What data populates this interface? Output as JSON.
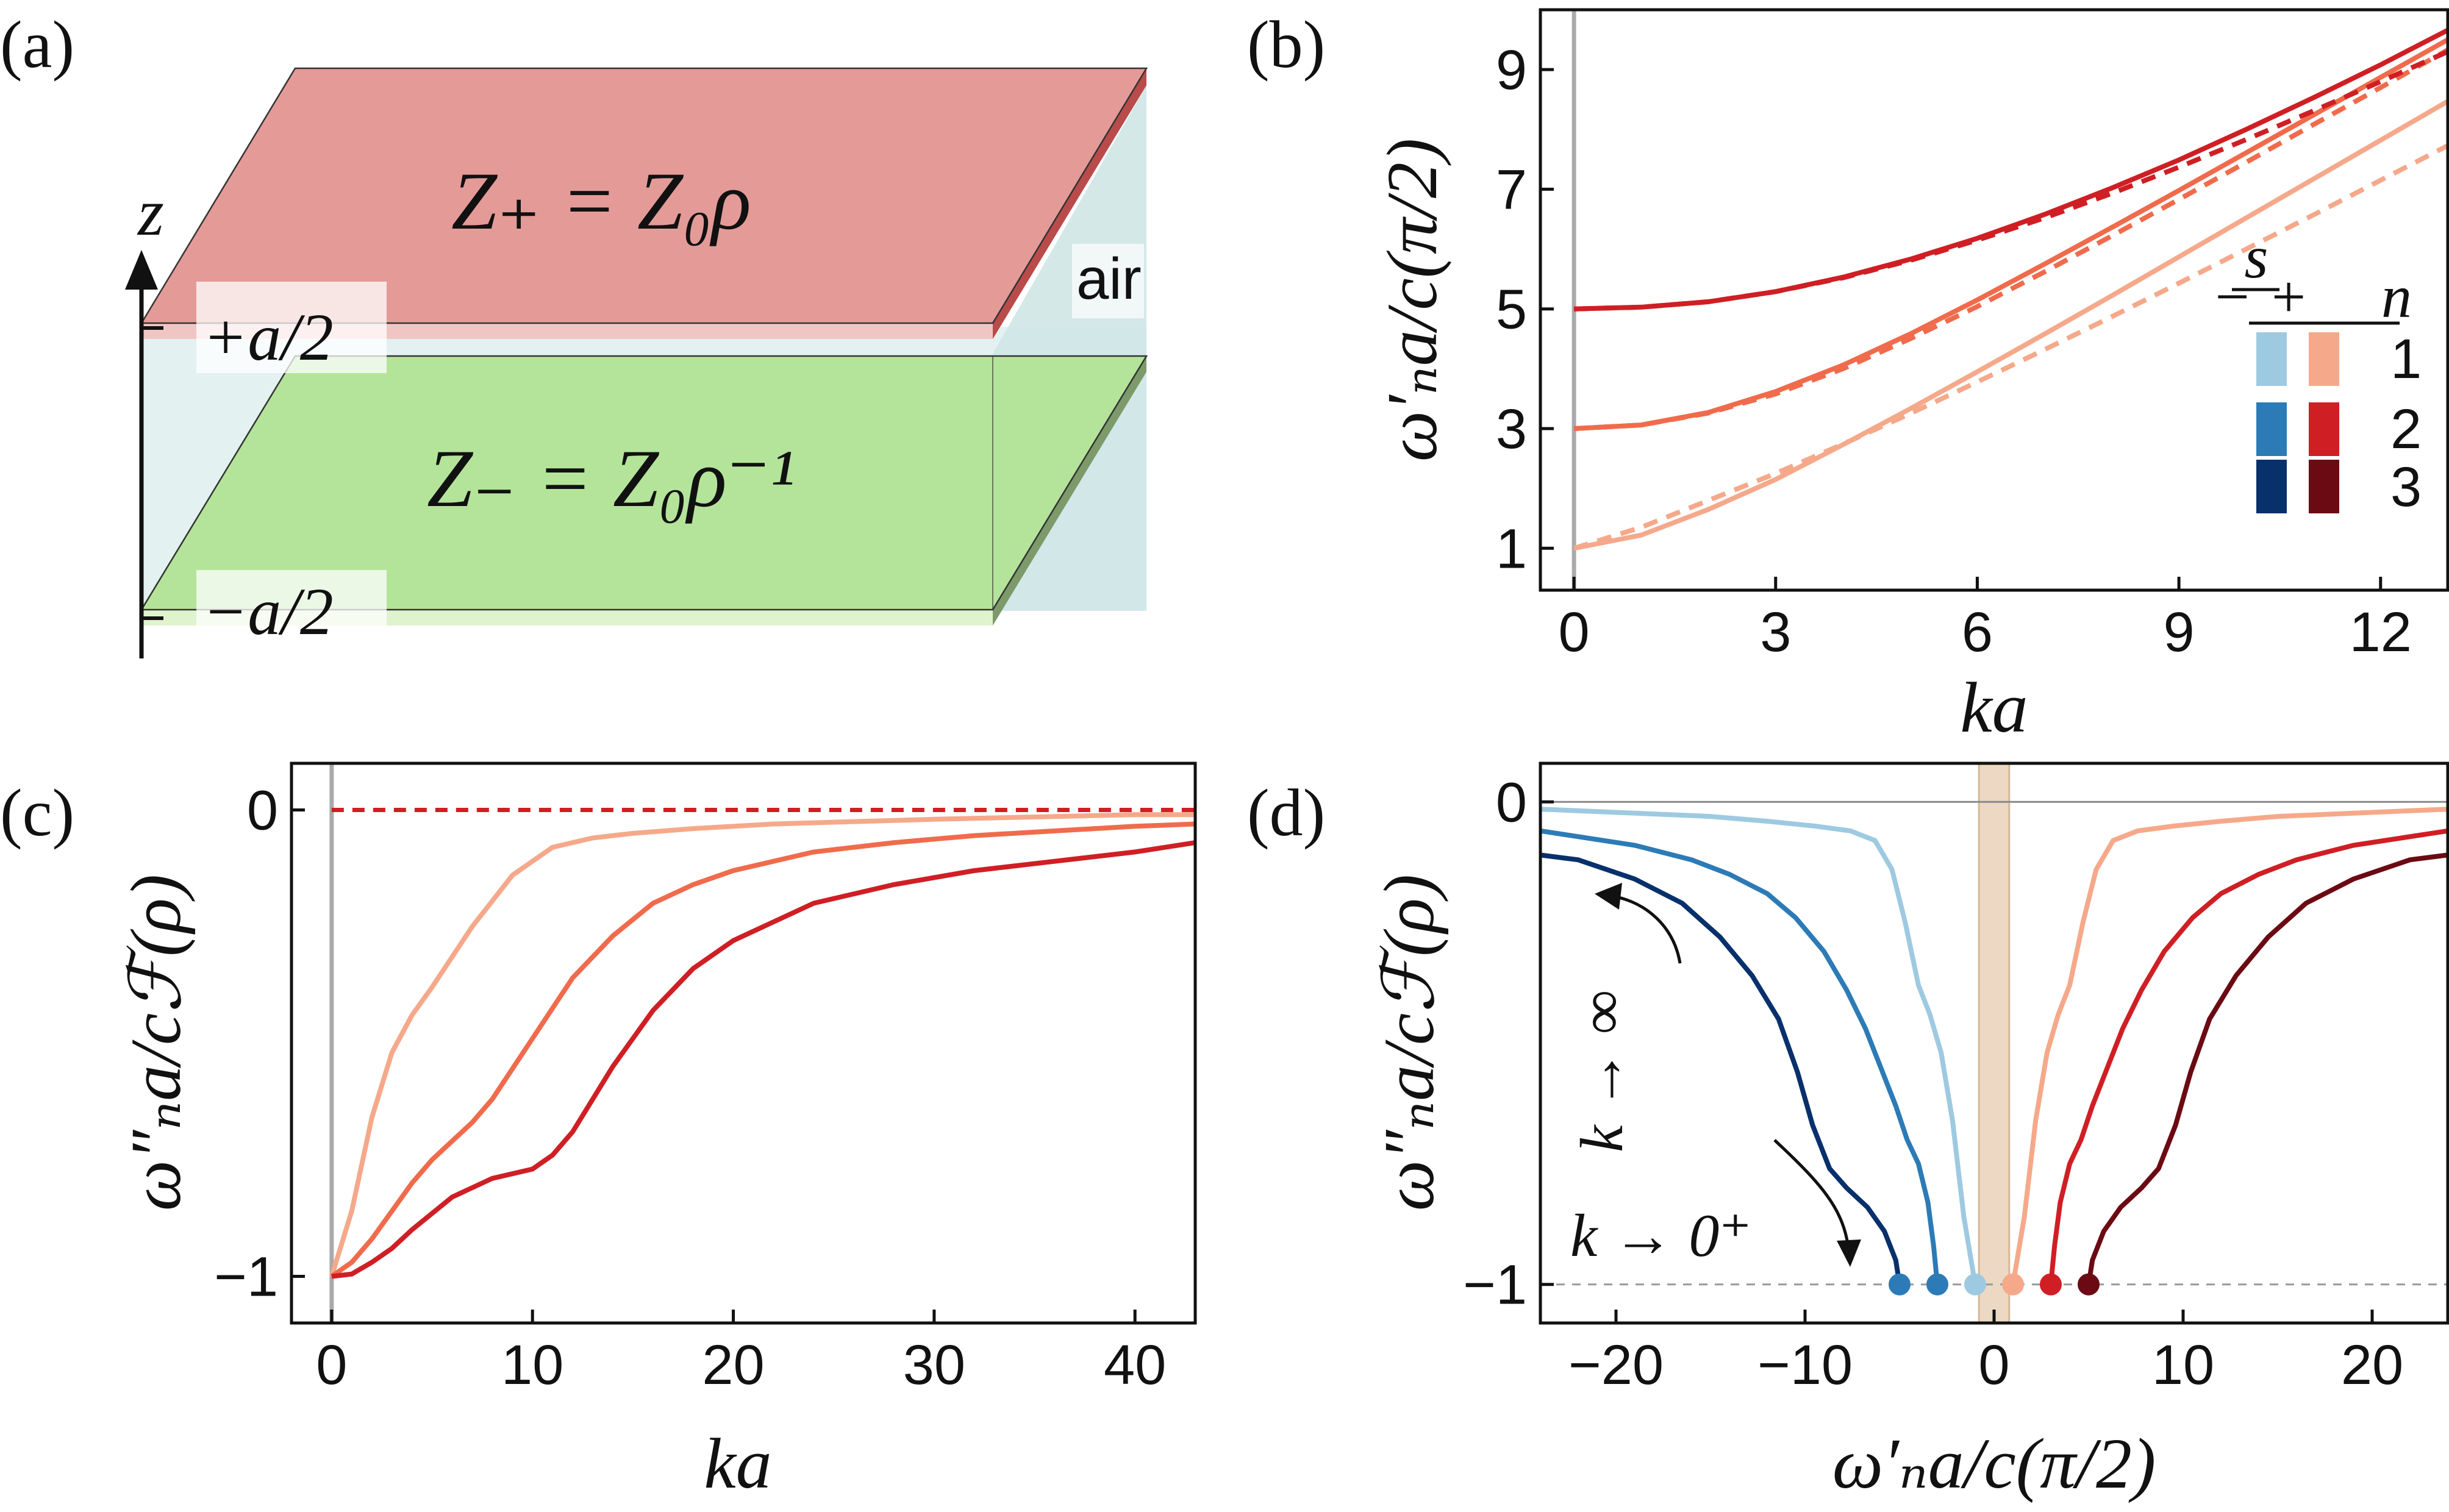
{
  "colors": {
    "red_1": "#f5a98a",
    "red_2": "#f06b4c",
    "red_3": "#cf1f24",
    "red_4": "#6b0a13",
    "blue_1": "#9ecae1",
    "blue_2": "#2c7bb6",
    "blue_3": "#08306b",
    "top_slab": "#e49b98",
    "bottom_slab": "#b4e49a",
    "air": "#d9ecec",
    "band": "#e8cfb4"
  },
  "panel_a": {
    "label": "(a)",
    "top_eq": "Z₊ = Z₀ρ",
    "bottom_eq": "Z₋ = Z₀ρ⁻¹",
    "air": "air",
    "z": "z",
    "plus": "+a/2",
    "minus": "−a/2"
  },
  "panel_b": {
    "label": "(b)"
  },
  "panel_c": {
    "label": "(c)"
  },
  "panel_d": {
    "label": "(d)",
    "ann_inf": "k → ∞",
    "ann_zero": "k → 0⁺"
  },
  "legend": {
    "s": "s",
    "minus": "−",
    "plus": "+",
    "n": "n",
    "rows": [
      "1",
      "2",
      "3"
    ]
  },
  "chart_data": [
    {
      "type": "line",
      "panel": "b",
      "xlabel": "ka",
      "ylabel": "ω′ₙa/c(π/2)",
      "xlim": [
        -0.5,
        13
      ],
      "ylim": [
        0.3,
        10
      ],
      "xticks": [
        "0",
        "3",
        "6",
        "9",
        "12"
      ],
      "yticks": [
        "1",
        "3",
        "5",
        "7",
        "9"
      ],
      "series": [
        {
          "name": "n=1 s=+ solid",
          "n": 1,
          "style": "solid",
          "x": [
            0,
            1,
            2,
            3,
            4,
            5,
            6,
            7,
            8,
            9,
            10,
            11,
            12,
            13
          ],
          "values": [
            1.0,
            1.22,
            1.65,
            2.15,
            2.73,
            3.33,
            3.95,
            4.58,
            5.22,
            5.87,
            6.52,
            7.17,
            7.82,
            8.47
          ]
        },
        {
          "name": "n=1 s=+ dashed",
          "n": 1,
          "style": "dashed",
          "x": [
            0,
            1,
            2,
            3,
            4,
            5,
            6,
            7,
            8,
            9,
            10,
            11,
            12,
            13
          ],
          "values": [
            1.0,
            1.35,
            1.8,
            2.25,
            2.74,
            3.25,
            3.78,
            4.32,
            4.87,
            5.43,
            6.0,
            6.57,
            7.15,
            7.73
          ]
        },
        {
          "name": "n=2 s=+ solid",
          "n": 2,
          "style": "solid",
          "x": [
            0,
            1,
            2,
            3,
            4,
            5,
            6,
            7,
            8,
            9,
            10,
            11,
            12,
            13
          ],
          "values": [
            3.0,
            3.06,
            3.27,
            3.62,
            4.06,
            4.58,
            5.15,
            5.75,
            6.36,
            6.98,
            7.61,
            8.24,
            8.87,
            9.5
          ]
        },
        {
          "name": "n=2 s=+ dashed",
          "n": 2,
          "style": "dashed",
          "x": [
            0,
            1,
            2,
            3,
            4,
            5,
            6,
            7,
            8,
            9,
            10,
            11,
            12,
            13
          ],
          "values": [
            3.0,
            3.06,
            3.26,
            3.58,
            4.0,
            4.5,
            5.04,
            5.62,
            6.22,
            6.83,
            7.45,
            8.08,
            8.7,
            9.33
          ]
        },
        {
          "name": "n=3 s=+ solid",
          "n": 3,
          "style": "solid",
          "x": [
            0,
            1,
            2,
            3,
            4,
            5,
            6,
            7,
            8,
            9,
            10,
            11,
            12,
            13
          ],
          "values": [
            5.0,
            5.03,
            5.12,
            5.29,
            5.53,
            5.83,
            6.18,
            6.58,
            7.02,
            7.49,
            8.0,
            8.53,
            9.08,
            9.66
          ]
        },
        {
          "name": "n=3 s=+ dashed",
          "n": 3,
          "style": "dashed",
          "x": [
            0,
            1,
            2,
            3,
            4,
            5,
            6,
            7,
            8,
            9,
            10,
            11,
            12,
            13
          ],
          "values": [
            5.0,
            5.03,
            5.12,
            5.29,
            5.52,
            5.81,
            6.15,
            6.52,
            6.93,
            7.37,
            7.83,
            8.31,
            8.8,
            9.3
          ]
        }
      ]
    },
    {
      "type": "line",
      "panel": "c",
      "xlabel": "ka",
      "ylabel": "ω″ₙa/cℱ(ρ)",
      "xlim": [
        -2,
        43
      ],
      "ylim": [
        -1.1,
        0.1
      ],
      "xticks": [
        "0",
        "10",
        "20",
        "30",
        "40"
      ],
      "yticks": [
        "0",
        "−1"
      ],
      "reference_line": 0,
      "series": [
        {
          "name": "n=1",
          "n": 1,
          "x": [
            0,
            1,
            2,
            3,
            4,
            5,
            7,
            9,
            11,
            13,
            15,
            18,
            22,
            26,
            30,
            35,
            40,
            43
          ],
          "values": [
            -1.0,
            -0.86,
            -0.66,
            -0.52,
            -0.44,
            -0.38,
            -0.25,
            -0.14,
            -0.08,
            -0.06,
            -0.05,
            -0.04,
            -0.03,
            -0.025,
            -0.02,
            -0.015,
            -0.01,
            -0.01
          ]
        },
        {
          "name": "n=2",
          "n": 2,
          "x": [
            0,
            1,
            2,
            3,
            4,
            5,
            6,
            7,
            8,
            10,
            12,
            14,
            16,
            18,
            20,
            24,
            28,
            32,
            36,
            40,
            43
          ],
          "values": [
            -1.0,
            -0.97,
            -0.92,
            -0.86,
            -0.8,
            -0.75,
            -0.71,
            -0.67,
            -0.62,
            -0.49,
            -0.36,
            -0.27,
            -0.2,
            -0.16,
            -0.13,
            -0.09,
            -0.07,
            -0.055,
            -0.045,
            -0.035,
            -0.03
          ]
        },
        {
          "name": "n=3",
          "n": 3,
          "x": [
            0,
            1,
            2,
            3,
            4,
            6,
            8,
            10,
            11,
            12,
            13,
            14,
            16,
            18,
            20,
            24,
            28,
            32,
            36,
            40,
            43
          ],
          "values": [
            -1.0,
            -0.995,
            -0.97,
            -0.94,
            -0.9,
            -0.83,
            -0.79,
            -0.77,
            -0.74,
            -0.69,
            -0.62,
            -0.55,
            -0.43,
            -0.34,
            -0.28,
            -0.2,
            -0.16,
            -0.13,
            -0.11,
            -0.09,
            -0.07
          ]
        }
      ]
    },
    {
      "type": "line",
      "panel": "d",
      "xlabel": "ω′ₙa/c(π/2)",
      "ylabel": "ω″ₙa/cℱ(ρ)",
      "xlim": [
        -24,
        24
      ],
      "ylim": [
        -1.08,
        0.08
      ],
      "xticks": [
        "−20",
        "−10",
        "0",
        "10",
        "20"
      ],
      "yticks": [
        "0",
        "−1"
      ],
      "reference_line": -1,
      "band": [
        -0.8,
        0.8
      ],
      "series": [
        {
          "name": "s=− n=1",
          "color": "blue_1",
          "x": [
            -1.0,
            -1.6,
            -2.2,
            -2.8,
            -3.4,
            -4.0,
            -4.7,
            -5.4,
            -6.3,
            -7.6,
            -9.5,
            -12,
            -15,
            -18,
            -21,
            -24
          ],
          "values": [
            -1.0,
            -0.86,
            -0.66,
            -0.52,
            -0.44,
            -0.38,
            -0.25,
            -0.14,
            -0.08,
            -0.06,
            -0.05,
            -0.04,
            -0.03,
            -0.025,
            -0.02,
            -0.015
          ]
        },
        {
          "name": "s=− n=2",
          "color": "blue_2",
          "x": [
            -3.0,
            -3.2,
            -3.5,
            -4.0,
            -4.6,
            -5.2,
            -6.0,
            -6.8,
            -7.8,
            -9.0,
            -10.5,
            -12,
            -14,
            -16,
            -19,
            -24
          ],
          "values": [
            -1.0,
            -0.92,
            -0.83,
            -0.75,
            -0.7,
            -0.63,
            -0.55,
            -0.47,
            -0.39,
            -0.31,
            -0.24,
            -0.19,
            -0.15,
            -0.12,
            -0.09,
            -0.06
          ]
        },
        {
          "name": "s=− n=3",
          "color": "blue_3",
          "x": [
            -5.0,
            -5.2,
            -5.8,
            -6.7,
            -7.8,
            -8.7,
            -9.6,
            -10.4,
            -11.4,
            -12.8,
            -14.5,
            -16.5,
            -19,
            -22,
            -24
          ],
          "values": [
            -1.0,
            -0.95,
            -0.89,
            -0.84,
            -0.8,
            -0.76,
            -0.67,
            -0.56,
            -0.45,
            -0.36,
            -0.28,
            -0.21,
            -0.16,
            -0.12,
            -0.11
          ]
        },
        {
          "name": "s=+ n=1",
          "color": "red_1",
          "x": [
            1.0,
            1.6,
            2.2,
            2.8,
            3.4,
            4.0,
            4.7,
            5.4,
            6.3,
            7.6,
            9.5,
            12,
            15,
            18,
            21,
            24
          ],
          "values": [
            -1.0,
            -0.86,
            -0.66,
            -0.52,
            -0.44,
            -0.38,
            -0.25,
            -0.14,
            -0.08,
            -0.06,
            -0.05,
            -0.04,
            -0.03,
            -0.025,
            -0.02,
            -0.015
          ]
        },
        {
          "name": "s=+ n=2",
          "color": "red_3",
          "x": [
            3.0,
            3.2,
            3.5,
            4.0,
            4.6,
            5.2,
            6.0,
            6.8,
            7.8,
            9.0,
            10.5,
            12,
            14,
            16,
            19,
            24
          ],
          "values": [
            -1.0,
            -0.92,
            -0.83,
            -0.75,
            -0.7,
            -0.63,
            -0.55,
            -0.47,
            -0.39,
            -0.31,
            -0.24,
            -0.19,
            -0.15,
            -0.12,
            -0.09,
            -0.06
          ]
        },
        {
          "name": "s=+ n=3",
          "color": "red_4",
          "x": [
            5.0,
            5.2,
            5.8,
            6.7,
            7.8,
            8.7,
            9.6,
            10.4,
            11.4,
            12.8,
            14.5,
            16.5,
            19,
            22,
            24
          ],
          "values": [
            -1.0,
            -0.95,
            -0.89,
            -0.84,
            -0.8,
            -0.76,
            -0.67,
            -0.56,
            -0.45,
            -0.36,
            -0.28,
            -0.21,
            -0.16,
            -0.12,
            -0.11
          ]
        }
      ],
      "points": [
        {
          "x": -5,
          "y": -1,
          "color": "blue_2"
        },
        {
          "x": -3,
          "y": -1,
          "color": "blue_2"
        },
        {
          "x": -1,
          "y": -1,
          "color": "blue_1"
        },
        {
          "x": 1,
          "y": -1,
          "color": "red_1"
        },
        {
          "x": 3,
          "y": -1,
          "color": "red_3"
        },
        {
          "x": 5,
          "y": -1,
          "color": "red_4"
        }
      ]
    }
  ]
}
